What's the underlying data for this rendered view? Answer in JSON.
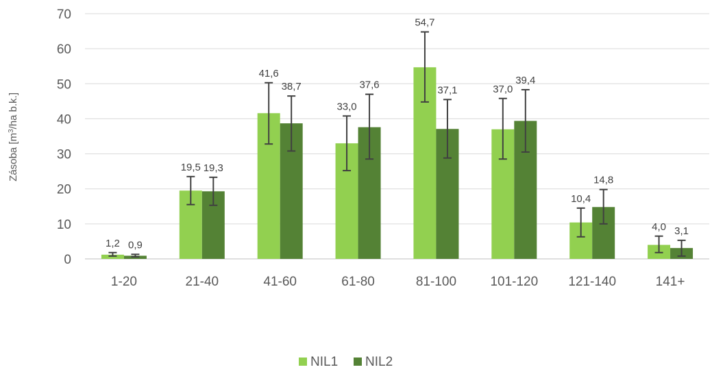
{
  "chart_data": {
    "type": "bar",
    "categories": [
      "1-20",
      "21-40",
      "41-60",
      "61-80",
      "81-100",
      "101-120",
      "121-140",
      "141+"
    ],
    "series": [
      {
        "name": "NIL1",
        "color": "#92d050",
        "values": [
          1.2,
          19.5,
          41.6,
          33.0,
          54.7,
          37.0,
          10.4,
          4.0
        ],
        "labels": [
          "1,2",
          "19,5",
          "41,6",
          "33,0",
          "54,7",
          "37,0",
          "10,4",
          "4,0"
        ],
        "error_low": [
          0.8,
          15.5,
          32.8,
          25.2,
          44.8,
          28.5,
          6.3,
          1.8
        ],
        "error_high": [
          1.8,
          23.5,
          50.3,
          40.8,
          64.8,
          45.8,
          14.5,
          6.5
        ]
      },
      {
        "name": "NIL2",
        "color": "#548235",
        "values": [
          0.9,
          19.3,
          38.7,
          37.6,
          37.1,
          39.4,
          14.8,
          3.1
        ],
        "labels": [
          "0,9",
          "19,3",
          "38,7",
          "37,6",
          "37,1",
          "39,4",
          "14,8",
          "3,1"
        ],
        "error_low": [
          0.6,
          15.3,
          30.8,
          28.5,
          28.8,
          30.5,
          10.0,
          0.8
        ],
        "error_high": [
          1.3,
          23.3,
          46.5,
          47.0,
          45.5,
          48.3,
          19.8,
          5.3
        ]
      }
    ],
    "ylabel_prefix": "Zásoba [m",
    "ylabel_sup": "3",
    "ylabel_suffix": "/ha b.k.]",
    "ylim": [
      0,
      70
    ],
    "yticks": [
      0,
      10,
      20,
      30,
      40,
      50,
      60,
      70
    ],
    "grid": true,
    "legend_position": "bottom"
  }
}
